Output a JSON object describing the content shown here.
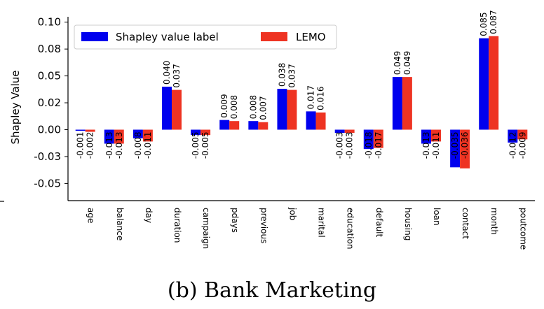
{
  "caption": "(b) Bank Marketing",
  "chart_data": {
    "type": "bar",
    "title": "",
    "xlabel": "",
    "ylabel": "Shapley Value",
    "ylim": [
      -0.066,
      0.105
    ],
    "yticks": [
      0.1,
      0.075,
      0.05,
      0.025,
      0.0,
      -0.025,
      -0.05
    ],
    "ytick_labels": [
      "0.10",
      "0.08",
      "0.05",
      "0.02",
      "0.00",
      "-0.03",
      "-0.05"
    ],
    "legend_position": "top-left",
    "grid": false,
    "categories": [
      "age",
      "balance",
      "day",
      "duration",
      "campaign",
      "pdays",
      "previous",
      "job",
      "marital",
      "education",
      "default",
      "housing",
      "loan",
      "contact",
      "month",
      "poutcome"
    ],
    "series": [
      {
        "name": "Shapley value label",
        "color": "#0000ee",
        "values": [
          -0.001,
          -0.013,
          -0.008,
          0.04,
          -0.005,
          0.009,
          0.008,
          0.038,
          0.017,
          -0.003,
          -0.018,
          0.049,
          -0.013,
          -0.035,
          0.085,
          -0.012
        ]
      },
      {
        "name": "LEMO",
        "color": "#ee3322",
        "values": [
          -0.002,
          -0.013,
          -0.011,
          0.037,
          -0.005,
          0.008,
          0.007,
          0.037,
          0.016,
          -0.003,
          -0.017,
          0.049,
          -0.011,
          -0.036,
          0.087,
          -0.009
        ]
      }
    ],
    "value_labels": [
      [
        "-0.001",
        "-0.013",
        "-0.008",
        "0.040",
        "-0.005",
        "0.009",
        "0.008",
        "0.038",
        "0.017",
        "-0.003",
        "-0.018",
        "0.049",
        "-0.013",
        "-0.035",
        "0.085",
        "-0.012"
      ],
      [
        "-0.002",
        "-0.013",
        "-0.011",
        "0.037",
        "-0.005",
        "0.008",
        "0.007",
        "0.037",
        "0.016",
        "-0.003",
        "-0.017",
        "0.049",
        "-0.011",
        "-0.036",
        "0.087",
        "-0.009"
      ]
    ]
  }
}
